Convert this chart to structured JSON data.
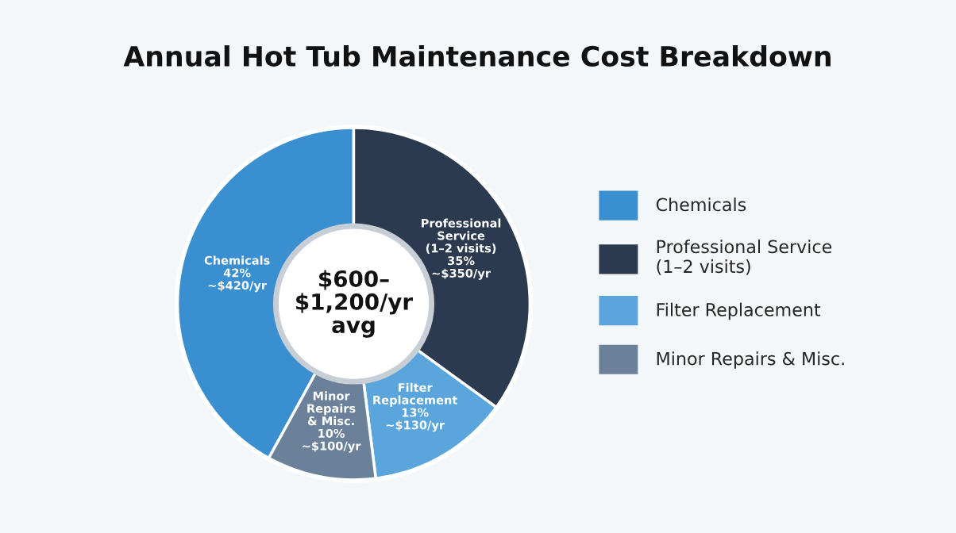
{
  "chart_data": {
    "type": "donut",
    "title": "Annual Hot Tub Maintenance Cost Breakdown",
    "categories": [
      "Chemicals",
      "Professional Service\n(1–2 visits)",
      "Filter Replacement",
      "Minor Repairs & Misc."
    ],
    "values": [
      42,
      35,
      13,
      10
    ],
    "colors": [
      "#3a8fd0",
      "#2b3a4f",
      "#5aa5dc",
      "#6a8199"
    ],
    "value_labels": [
      "Chemicals\n42%\n~$420/yr",
      "Professional\nService\n(1–2 visits)\n35%\n~$350/yr",
      "Filter\nReplacement\n13%\n~$130/yr",
      "Minor\nRepairs\n& Misc.\n10%\n~$100/yr"
    ],
    "annotations": [
      "$600–\n$1,200/yr\navg"
    ],
    "legend": "right"
  }
}
